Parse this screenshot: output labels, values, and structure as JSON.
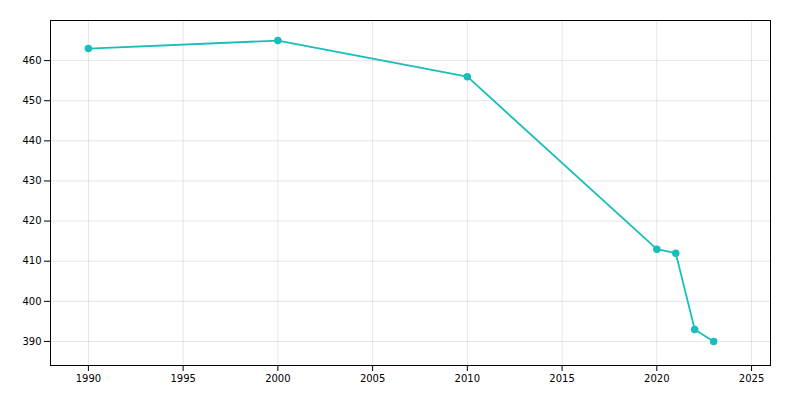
{
  "chart_data": {
    "type": "line",
    "x": [
      1990,
      2000,
      2010,
      2020,
      2021,
      2022,
      2023
    ],
    "values": [
      463,
      465,
      456,
      413,
      412,
      393,
      390
    ],
    "color": "#17bebb",
    "marker": "o",
    "xlim": [
      1988,
      2026
    ],
    "ylim": [
      384,
      470
    ],
    "xticks": [
      1990,
      1995,
      2000,
      2005,
      2010,
      2015,
      2020,
      2025
    ],
    "yticks": [
      390,
      400,
      410,
      420,
      430,
      440,
      450,
      460
    ],
    "grid": true
  }
}
